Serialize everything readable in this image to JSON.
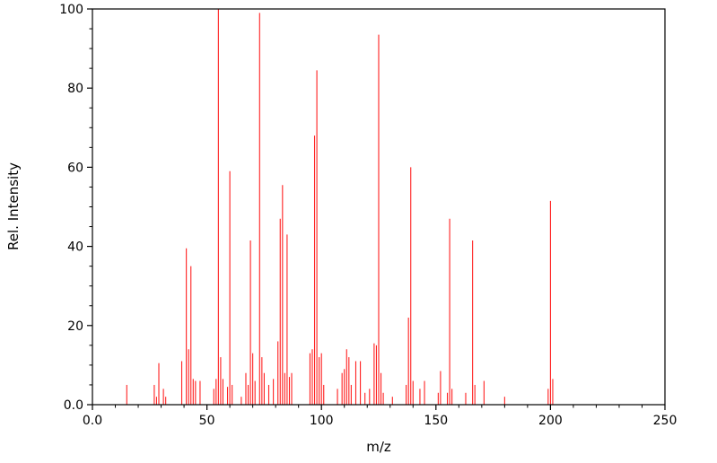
{
  "figure": {
    "background": "#ffffff",
    "frame_color": "#000000",
    "tick_color": "#000000"
  },
  "chart_data": {
    "type": "bar",
    "subtype": "mass-spectrum-stick-plot",
    "title": "",
    "xlabel": "m/z",
    "ylabel": "Rel. Intensity",
    "xlim": [
      0,
      250
    ],
    "ylim": [
      0,
      100
    ],
    "grid": false,
    "legend_position": "none",
    "bar_color": "#ff2020",
    "xticks": {
      "values": [
        0,
        50,
        100,
        150,
        200,
        250
      ],
      "labels": [
        "0.0",
        "50",
        "100",
        "150",
        "200",
        "250"
      ]
    },
    "yticks": {
      "values": [
        0,
        20,
        40,
        60,
        80,
        100
      ],
      "labels": [
        "0.0",
        "20",
        "40",
        "60",
        "80",
        "100"
      ]
    },
    "minor_x_step": 10,
    "minor_y_step": 5,
    "peaks": [
      [
        15,
        5
      ],
      [
        27,
        5
      ],
      [
        28,
        2
      ],
      [
        29,
        10.5
      ],
      [
        31,
        4
      ],
      [
        32,
        2
      ],
      [
        39,
        11
      ],
      [
        41,
        39.5
      ],
      [
        42,
        14
      ],
      [
        43,
        35
      ],
      [
        44,
        6.5
      ],
      [
        45,
        6
      ],
      [
        47,
        6
      ],
      [
        53,
        4
      ],
      [
        54,
        6.5
      ],
      [
        55,
        100
      ],
      [
        56,
        12
      ],
      [
        57,
        6.5
      ],
      [
        59,
        4.5
      ],
      [
        60,
        59
      ],
      [
        61,
        5
      ],
      [
        65,
        2
      ],
      [
        67,
        8
      ],
      [
        68,
        5
      ],
      [
        69,
        41.5
      ],
      [
        70,
        13
      ],
      [
        71,
        6
      ],
      [
        73,
        99
      ],
      [
        74,
        12
      ],
      [
        75,
        8
      ],
      [
        77,
        5
      ],
      [
        79,
        6.5
      ],
      [
        81,
        16
      ],
      [
        82,
        47
      ],
      [
        83,
        55.5
      ],
      [
        84,
        8
      ],
      [
        85,
        43
      ],
      [
        86,
        7
      ],
      [
        87,
        8
      ],
      [
        95,
        13
      ],
      [
        96,
        14
      ],
      [
        97,
        68
      ],
      [
        98,
        84.5
      ],
      [
        99,
        12
      ],
      [
        100,
        13
      ],
      [
        101,
        5
      ],
      [
        107,
        4
      ],
      [
        109,
        8
      ],
      [
        110,
        9
      ],
      [
        111,
        14
      ],
      [
        112,
        12
      ],
      [
        113,
        5
      ],
      [
        115,
        11
      ],
      [
        117,
        11
      ],
      [
        119,
        3
      ],
      [
        121,
        4
      ],
      [
        123,
        15.5
      ],
      [
        124,
        15
      ],
      [
        125,
        93.5
      ],
      [
        126,
        8
      ],
      [
        127,
        3
      ],
      [
        131,
        2
      ],
      [
        137,
        5
      ],
      [
        138,
        22
      ],
      [
        139,
        60
      ],
      [
        140,
        6
      ],
      [
        143,
        4
      ],
      [
        145,
        6
      ],
      [
        151,
        3
      ],
      [
        152,
        8.5
      ],
      [
        155,
        3
      ],
      [
        156,
        47
      ],
      [
        157,
        4
      ],
      [
        163,
        3
      ],
      [
        166,
        41.5
      ],
      [
        167,
        5
      ],
      [
        171,
        6
      ],
      [
        180,
        2
      ],
      [
        199,
        4
      ],
      [
        200,
        51.5
      ],
      [
        201,
        6.5
      ]
    ]
  }
}
